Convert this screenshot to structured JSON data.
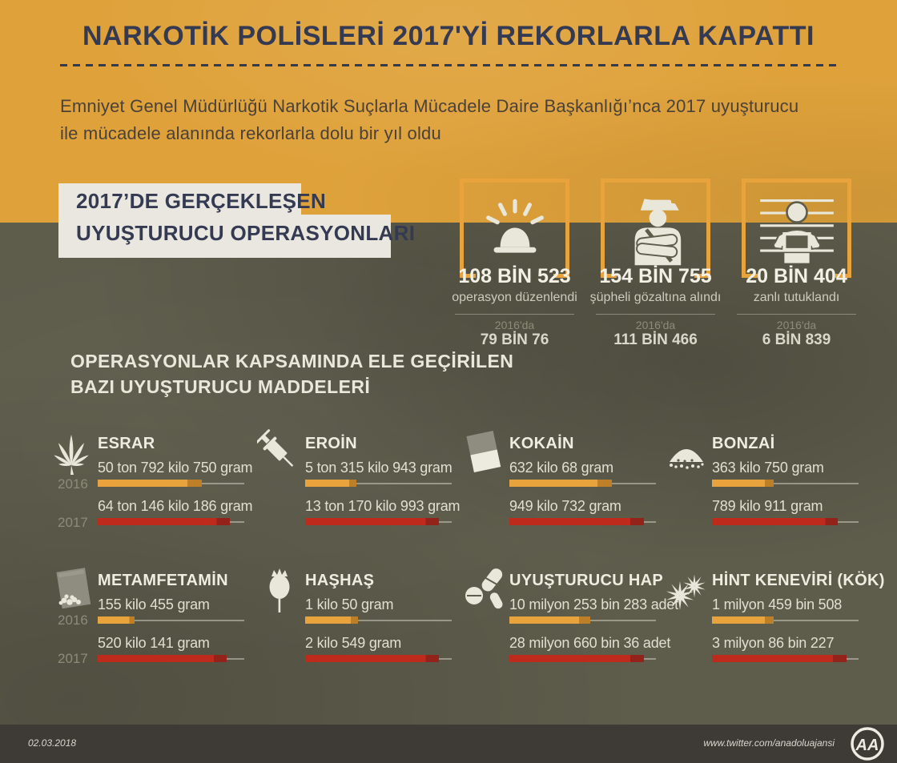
{
  "header": {
    "title": "NARKOTİK POLİSLERİ 2017'Yİ REKORLARLA KAPATTI",
    "subtitle_line1": "Emniyet Genel Müdürlüğü Narkotik Suçlarla Mücadele Daire Başkanlığı’nca 2017 uyuşturucu",
    "subtitle_line2": "ile mücadele alanında rekorlarla dolu bir yıl oldu"
  },
  "section1": {
    "label_line1": "2017’DE GERÇEKLEŞEN",
    "label_line2": "UYUŞTURUCU OPERASYONLARI",
    "stats": [
      {
        "icon": "siren-icon",
        "value_2017": "108 BİN 523",
        "label": "operasyon düzenlendi",
        "prev_label": "2016'da",
        "value_2016": "79 BİN 76"
      },
      {
        "icon": "police-officer-icon",
        "value_2017": "154 BİN 755",
        "label": "şüpheli gözaltına alındı",
        "prev_label": "2016'da",
        "value_2016": "111 BİN 466"
      },
      {
        "icon": "mugshot-icon",
        "value_2017": "20 BİN 404",
        "label": "zanlı tutuklandı",
        "prev_label": "2016'da",
        "value_2016": "6 BİN 839"
      }
    ]
  },
  "section2": {
    "header_line1": "OPERASYONLAR KAPSAMINDA ELE GEÇİRİLEN",
    "header_line2": "BAZI UYUŞTURUCU MADDELERİ",
    "year_labels": [
      "2016",
      "2017"
    ],
    "drugs": [
      {
        "name": "ESRAR",
        "icon": "cannabis-leaf-icon",
        "v2016": "50 ton 792 kilo 750 gram",
        "v2017": "64 ton 146 kilo 186 gram",
        "fill_2016": 0.71,
        "fill_2017": 0.9
      },
      {
        "name": "EROİN",
        "icon": "syringe-icon",
        "v2016": "5 ton 315 kilo 943 gram",
        "v2017": "13 ton 170 kilo 993 gram",
        "fill_2016": 0.35,
        "fill_2017": 0.91
      },
      {
        "name": "KOKAİN",
        "icon": "cocaine-brick-icon",
        "v2016": "632 kilo 68 gram",
        "v2017": "949 kilo 732 gram",
        "fill_2016": 0.7,
        "fill_2017": 0.92
      },
      {
        "name": "BONZAİ",
        "icon": "powder-pile-icon",
        "v2016": "363 kilo 750 gram",
        "v2017": "789 kilo 911 gram",
        "fill_2016": 0.42,
        "fill_2017": 0.86
      },
      {
        "name": "METAMFETAMİN",
        "icon": "crystal-baggie-icon",
        "v2016": "155 kilo 455 gram",
        "v2017": "520 kilo 141 gram",
        "fill_2016": 0.25,
        "fill_2017": 0.88
      },
      {
        "name": "HAŞHAŞ",
        "icon": "poppy-icon",
        "v2016": "1 kilo 50 gram",
        "v2017": "2 kilo 549 gram",
        "fill_2016": 0.36,
        "fill_2017": 0.91
      },
      {
        "name": "UYUŞTURUCU HAP",
        "icon": "pills-icon",
        "v2016": "10 milyon 253 bin 283 adet",
        "v2017": "28 milyon 660 bin 36 adet",
        "fill_2016": 0.55,
        "fill_2017": 0.92
      },
      {
        "name": "HİNT KENEVİRİ (KÖK)",
        "icon": "root-burst-icon",
        "v2016": "1 milyon 459 bin 508",
        "v2017": "3 milyon 86 bin 227",
        "fill_2016": 0.42,
        "fill_2017": 0.92
      }
    ]
  },
  "chart_data": [
    {
      "type": "bar",
      "title": "2017'DE GERÇEKLEŞEN UYUŞTURUCU OPERASYONLARI",
      "categories": [
        "operasyon düzenlendi",
        "şüpheli gözaltına alındı",
        "zanlı tutuklandı"
      ],
      "series": [
        {
          "name": "2016",
          "values": [
            79076,
            111466,
            6839
          ]
        },
        {
          "name": "2017",
          "values": [
            108523,
            154755,
            20404
          ]
        }
      ],
      "grid": false,
      "legend_position": "below-value"
    },
    {
      "type": "bar",
      "title": "OPERASYONLAR KAPSAMINDA ELE GEÇİRİLEN BAZI UYUŞTURUCU MADDELERİ",
      "categories": [
        "ESRAR",
        "EROİN",
        "KOKAİN",
        "BONZAİ",
        "METAMFETAMİN",
        "HAŞHAŞ",
        "UYUŞTURUCU HAP",
        "HİNT KENEVİRİ (KÖK)"
      ],
      "units": [
        "gram",
        "gram",
        "gram",
        "gram",
        "gram",
        "gram",
        "adet",
        "adet"
      ],
      "series": [
        {
          "name": "2016",
          "values": [
            50792750,
            5315943,
            632068,
            363750,
            155455,
            1050,
            10253283,
            1459508
          ],
          "value_labels": [
            "50 ton 792 kilo 750 gram",
            "5 ton 315 kilo 943 gram",
            "632 kilo 68 gram",
            "363 kilo 750 gram",
            "155 kilo 455 gram",
            "1 kilo 50 gram",
            "10 milyon 253 bin 283 adet",
            "1 milyon 459 bin 508"
          ],
          "color": "#E8A33C"
        },
        {
          "name": "2017",
          "values": [
            64146186,
            13170993,
            949732,
            789911,
            520141,
            2549,
            28660036,
            3086227
          ],
          "value_labels": [
            "64 ton 146 kilo 186 gram",
            "13 ton 170 kilo 993 gram",
            "949 kilo 732 gram",
            "789 kilo 911 gram",
            "520 kilo 141 gram",
            "2 kilo 549 gram",
            "28 milyon 660 bin 36 adet",
            "3 milyon 86 bin 227"
          ],
          "color": "#BE2B1D"
        }
      ],
      "grid": false,
      "legend_position": "left"
    }
  ],
  "footer": {
    "date": "02.03.2018",
    "url": "www.twitter.com/anadoluajansi",
    "logo": "AA"
  },
  "colors": {
    "yellow": "#DFA23B",
    "olive": "#5E5C4B",
    "navy": "#343A52",
    "subtitle": "#4B4138",
    "cream": "#EAE7DB",
    "light": "#D6D3C5",
    "muted": "#8E8B78",
    "orange": "#E8A33C",
    "red": "#BE2B1D",
    "footer": "#3E3B37",
    "panel": "#E9E7DF"
  }
}
